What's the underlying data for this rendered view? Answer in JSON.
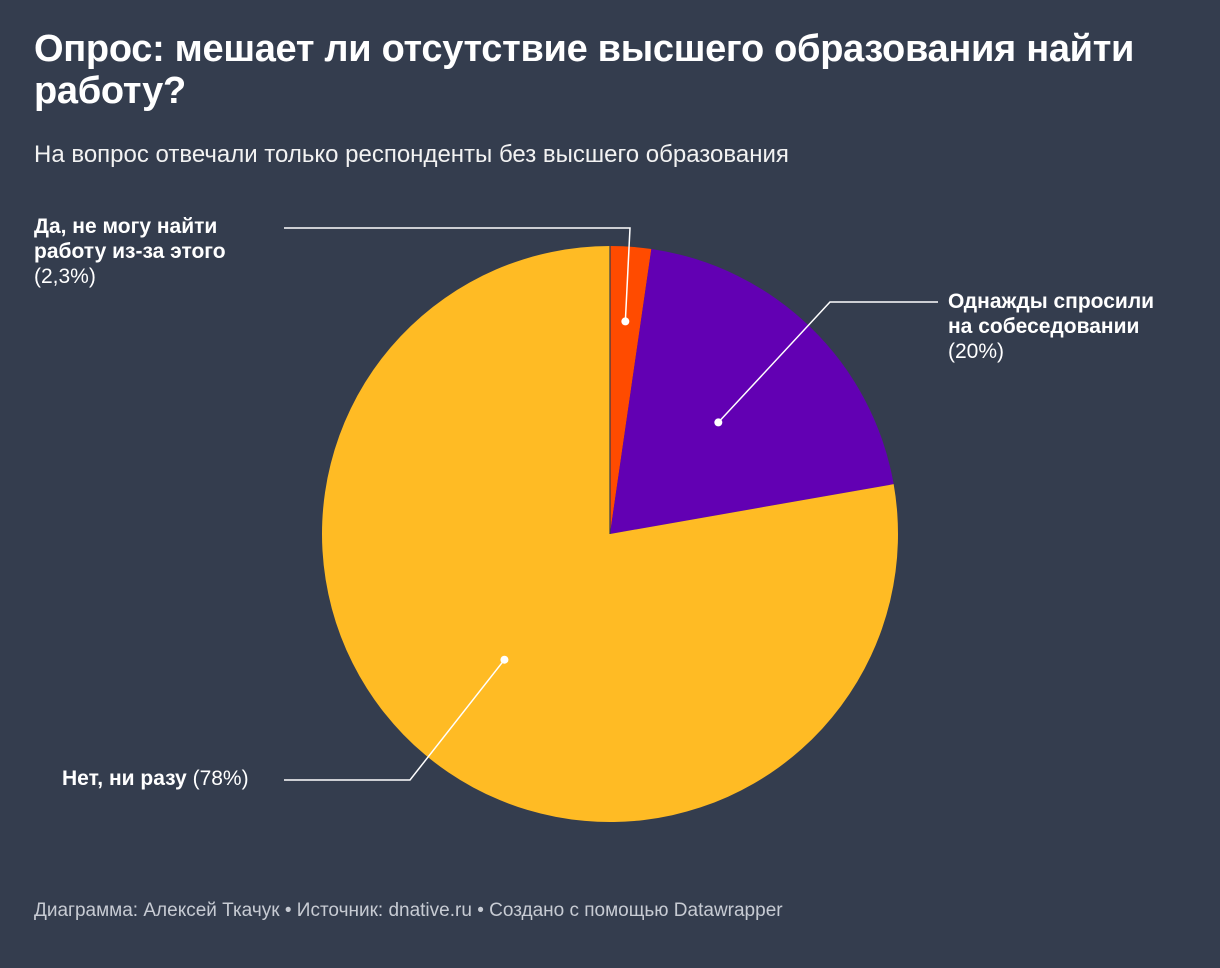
{
  "title": "Опрос: мешает ли отсутствие высшего образования найти работу?",
  "subtitle": "На вопрос отвечали только респонденты без высшего образования",
  "chart_data": {
    "type": "pie",
    "title": "Опрос: мешает ли отсутствие высшего образования найти работу?",
    "subtitle": "На вопрос отвечали только респонденты без высшего образования",
    "slices": [
      {
        "name_lines": [
          "Да, не могу найти",
          "работу из-за этого"
        ],
        "pct_label": "(2,3%)",
        "value": 2.3,
        "color": "#ff4b00"
      },
      {
        "name_lines": [
          "Однажды спросили",
          "на собеседовании"
        ],
        "pct_label": "(20%)",
        "value": 20,
        "color": "#6200b3"
      },
      {
        "name_lines": [
          "Нет, ни разу"
        ],
        "pct_label": "(78%)",
        "value": 78,
        "color": "#ffbb24"
      }
    ]
  },
  "footer": {
    "chart_label": "Диаграмма:",
    "author": "Алексей Ткачук",
    "separator": "•",
    "source_label": "Источник:",
    "source": "dnative.ru",
    "made_with": "Создано с помощью Datawrapper"
  }
}
